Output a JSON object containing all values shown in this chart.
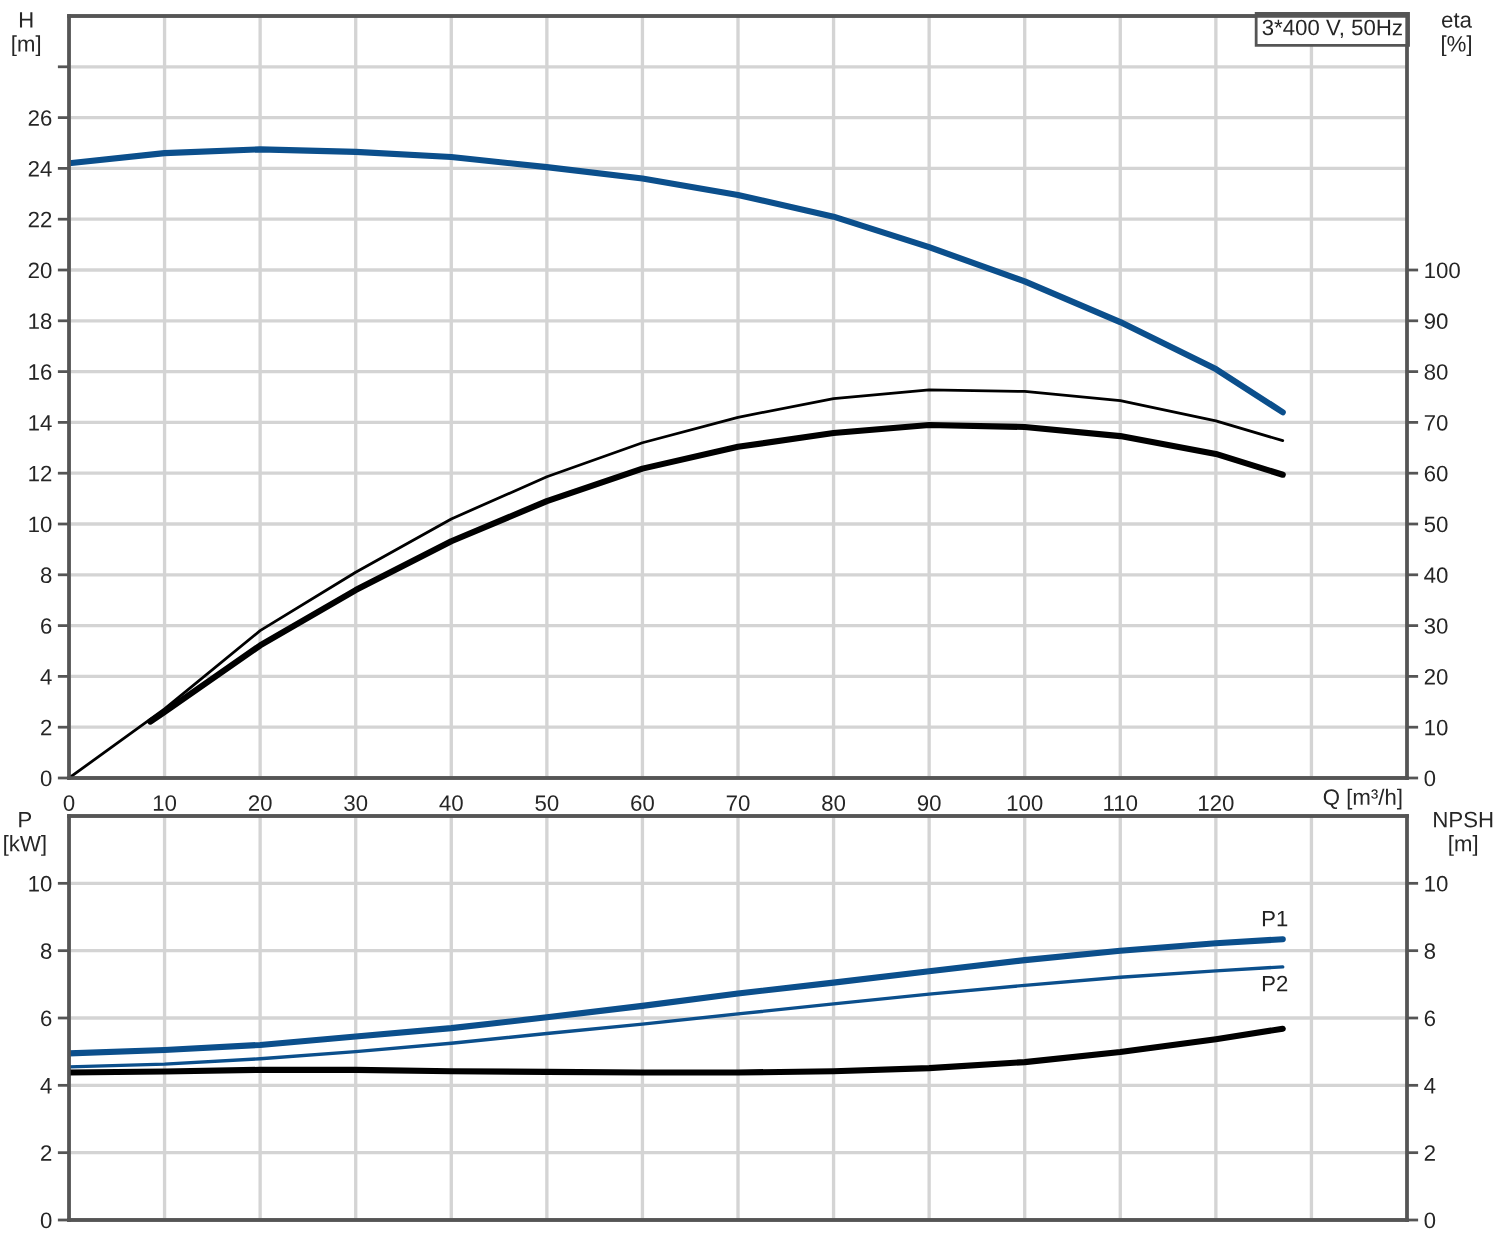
{
  "chart_data": [
    {
      "type": "line",
      "title": "3*400 V, 50Hz",
      "xlabel": "Q [m³/h]",
      "ylabel": "H\n[m]",
      "y2label": "eta\n[%]",
      "xlim": [
        0,
        140
      ],
      "xticks": [
        0,
        10,
        20,
        30,
        40,
        50,
        60,
        70,
        80,
        90,
        100,
        110,
        120,
        {
          "value": 130,
          "label": null
        }
      ],
      "ylim": [
        0,
        30
      ],
      "yticks": [
        0,
        2,
        4,
        6,
        8,
        10,
        12,
        14,
        16,
        18,
        20,
        22,
        24,
        26,
        {
          "value": 28,
          "label": null
        }
      ],
      "y2lim": [
        0,
        150
      ],
      "y2ticks": [
        0,
        10,
        20,
        30,
        40,
        50,
        60,
        70,
        80,
        90,
        100
      ],
      "grid": true,
      "series": [
        {
          "color": "#0b4f8c",
          "x": [
            0,
            10,
            20,
            30,
            40,
            50,
            60,
            70,
            80,
            90,
            100,
            110,
            120,
            127
          ],
          "values": [
            24.2,
            24.6,
            24.75,
            24.65,
            24.45,
            24.05,
            23.6,
            22.95,
            22.1,
            20.9,
            19.55,
            17.95,
            16.1,
            14.4
          ]
        },
        {
          "color": "#000000",
          "axis": "y2",
          "x": [
            0,
            10,
            20,
            30,
            40,
            50,
            60,
            70,
            80,
            90,
            100,
            110,
            120,
            127
          ],
          "values": [
            0,
            13.6,
            29,
            40.5,
            51,
            59.3,
            66,
            71,
            74.7,
            76.4,
            76.1,
            74.3,
            70.3,
            66.4
          ]
        },
        {
          "color": "#000000",
          "axis": "y2",
          "x": [
            8.5,
            10,
            20,
            30,
            40,
            50,
            60,
            70,
            80,
            90,
            100,
            110,
            120,
            127
          ],
          "values": [
            11.1,
            13,
            26.1,
            37,
            46.6,
            54.5,
            60.9,
            65.2,
            67.9,
            69.5,
            69.1,
            67.3,
            63.8,
            59.7
          ]
        }
      ]
    },
    {
      "type": "line",
      "ylabel": "P\n[kW]",
      "y2label": "NPSH\n[m]",
      "xlim": [
        0,
        140
      ],
      "xticks": [
        0,
        10,
        20,
        30,
        40,
        50,
        60,
        70,
        80,
        90,
        100,
        110,
        120,
        130
      ],
      "ylim": [
        0,
        12
      ],
      "yticks": [
        0,
        2,
        4,
        6,
        8,
        10
      ],
      "y2lim": [
        0,
        12
      ],
      "y2ticks": [
        0,
        2,
        4,
        6,
        8,
        10
      ],
      "grid": true,
      "tick_labels": "y",
      "series": [
        {
          "name": "P1",
          "color": "#0b4f8c",
          "x": [
            0,
            10,
            20,
            30,
            40,
            50,
            60,
            70,
            80,
            90,
            100,
            110,
            120,
            127
          ],
          "values": [
            4.95,
            5.05,
            5.2,
            5.45,
            5.7,
            6.02,
            6.36,
            6.73,
            7.05,
            7.39,
            7.72,
            8.0,
            8.22,
            8.34
          ]
        },
        {
          "name": "P2",
          "color": "#0b4f8c",
          "x": [
            0,
            10,
            20,
            30,
            40,
            50,
            60,
            70,
            80,
            90,
            100,
            110,
            120,
            127
          ],
          "values": [
            4.55,
            4.63,
            4.79,
            5.0,
            5.25,
            5.54,
            5.82,
            6.12,
            6.42,
            6.71,
            6.97,
            7.21,
            7.4,
            7.52
          ]
        },
        {
          "color": "#000000",
          "axis": "y2",
          "x": [
            0,
            10,
            20,
            30,
            40,
            50,
            60,
            70,
            80,
            90,
            100,
            110,
            120,
            127
          ],
          "values": [
            4.38,
            4.41,
            4.46,
            4.46,
            4.42,
            4.4,
            4.38,
            4.38,
            4.42,
            4.51,
            4.69,
            4.99,
            5.37,
            5.68
          ]
        }
      ]
    }
  ]
}
